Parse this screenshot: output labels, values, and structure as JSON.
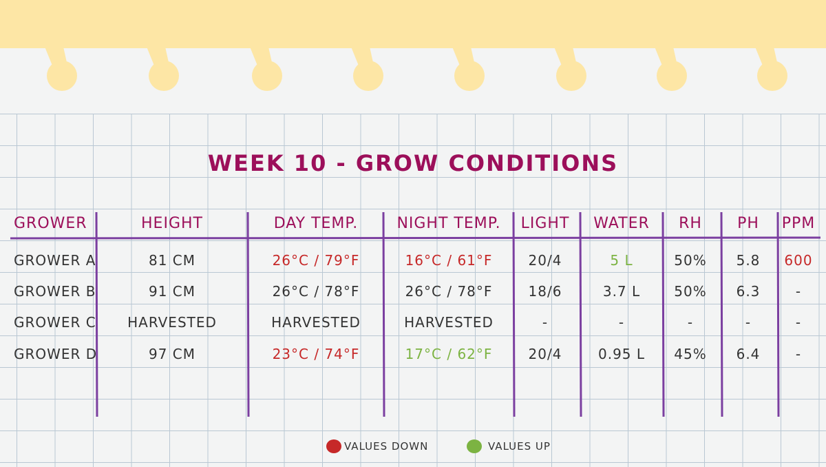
{
  "title": "WEEK 10 - GROW CONDITIONS",
  "table": {
    "headers": [
      "GROWER",
      "HEIGHT",
      "DAY TEMP.",
      "NIGHT TEMP.",
      "LIGHT",
      "WATER",
      "RH",
      "PH",
      "PPM"
    ],
    "rows": [
      [
        "GROWER A",
        "81 CM",
        {
          "text": "26°C / 79°F",
          "color": "#c62828"
        },
        {
          "text": "16°C / 61°F",
          "color": "#c62828"
        },
        "20/4",
        {
          "text": "5 L",
          "color": "#7cb342"
        },
        "50%",
        "5.8",
        {
          "text": "600",
          "color": "#c62828"
        }
      ],
      [
        "GROWER B",
        "91 CM",
        "26°C / 78°F",
        "26°C / 78°F",
        "18/6",
        "3.7 L",
        "50%",
        "6.3",
        "-"
      ],
      [
        "GROWER C",
        "HARVESTED",
        "HARVESTED",
        "HARVESTED",
        "-",
        "-",
        "-",
        "-",
        "-"
      ],
      [
        "GROWER D",
        "97 CM",
        {
          "text": "23°C / 74°F",
          "color": "#c62828"
        },
        {
          "text": "17°C / 62°F",
          "color": "#7cb342"
        },
        "20/4",
        "0.95 L",
        "45%",
        "6.4",
        "-"
      ]
    ]
  },
  "legend": [
    {
      "label": "VALUES DOWN",
      "color": "#c62828"
    },
    {
      "label": "VALUES UP",
      "color": "#7cb342"
    }
  ]
}
